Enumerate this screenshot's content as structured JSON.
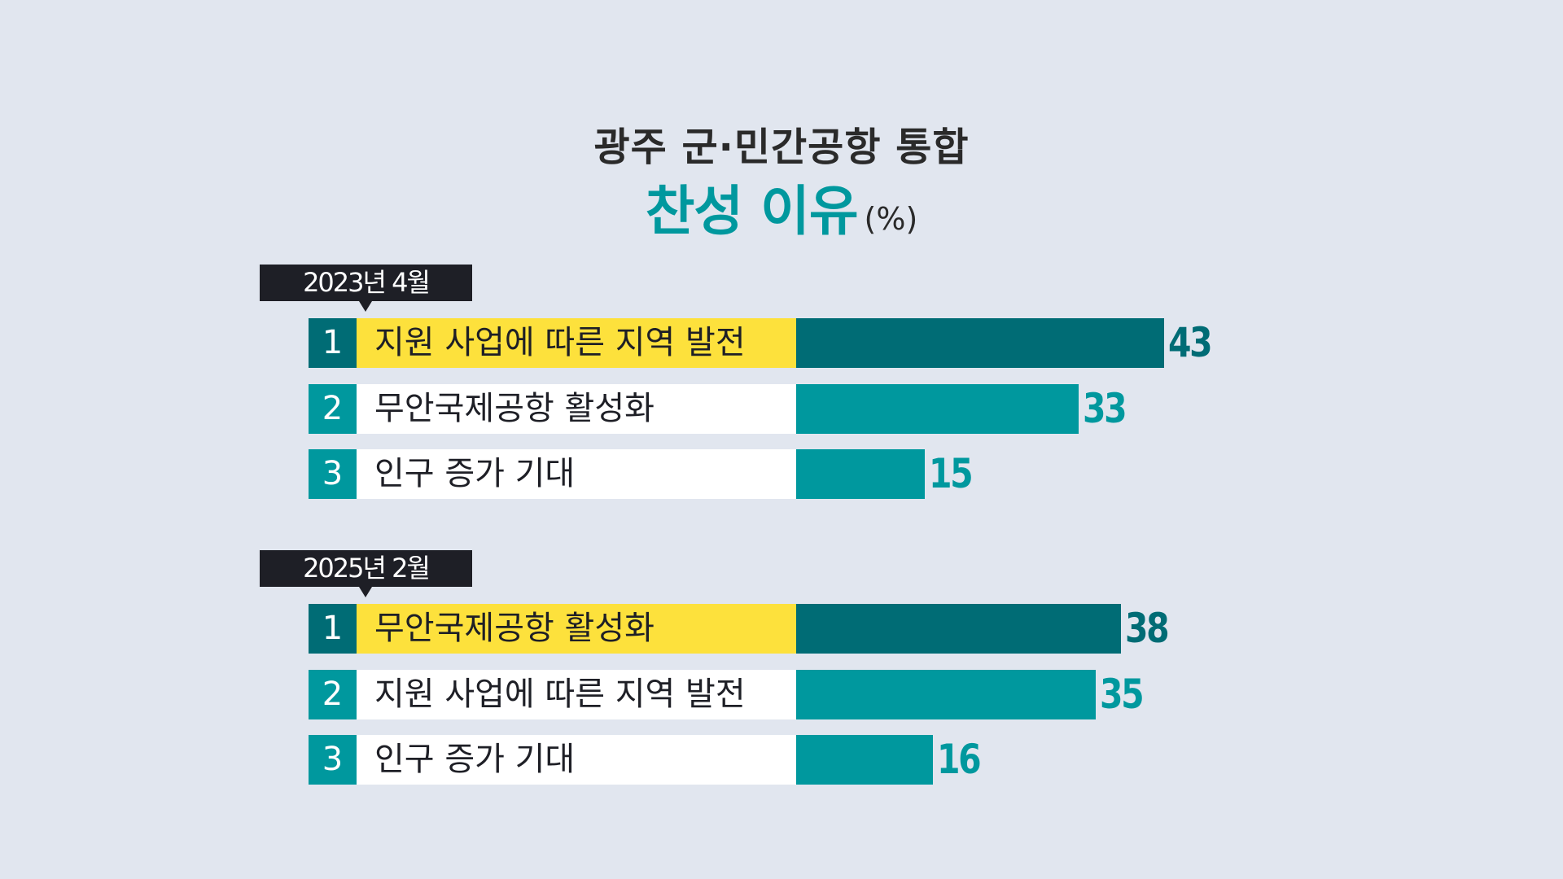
{
  "title": {
    "line1": "광주  군·민간공항  통합",
    "line2": "찬성 이유",
    "unit": "(%)"
  },
  "colors": {
    "background": "#e1e6ef",
    "accent_dark": "#006c75",
    "accent": "#00989e",
    "highlight": "#fde13c",
    "tag": "#1e1f26"
  },
  "chart_data": [
    {
      "type": "bar",
      "orientation": "horizontal",
      "period": "2023년 4월",
      "ranks": [
        "1",
        "2",
        "3"
      ],
      "categories": [
        "지원 사업에 따른 지역 발전",
        "무안국제공항 활성화",
        "인구 증가 기대"
      ],
      "values": [
        43,
        33,
        15
      ]
    },
    {
      "type": "bar",
      "orientation": "horizontal",
      "period": "2025년 2월",
      "ranks": [
        "1",
        "2",
        "3"
      ],
      "categories": [
        "무안국제공항 활성화",
        "지원 사업에 따른 지역 발전",
        "인구 증가 기대"
      ],
      "values": [
        38,
        35,
        16
      ]
    }
  ]
}
